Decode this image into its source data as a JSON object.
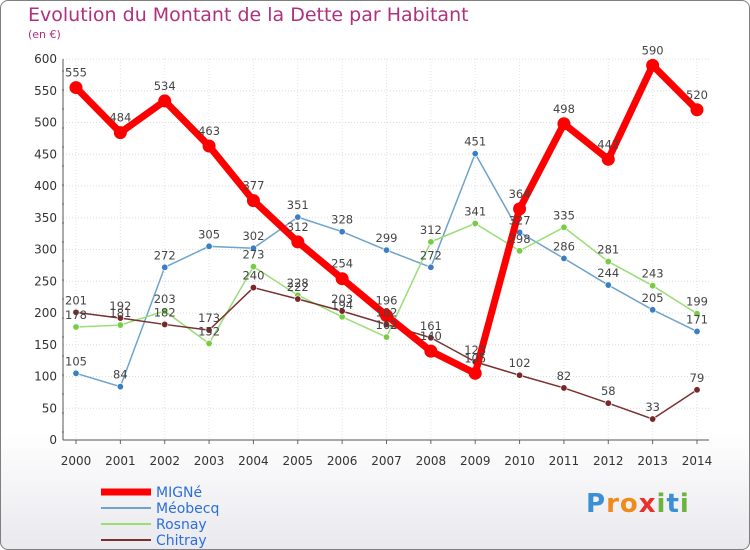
{
  "title": "Evolution du Montant de la Dette par Habitant",
  "subtitle": "(en €)",
  "logo": {
    "text": "Proxiti",
    "letters": [
      {
        "ch": "P",
        "color": "#3a8fd6"
      },
      {
        "ch": "r",
        "color": "#f08a1c"
      },
      {
        "ch": "o",
        "color": "#f08a1c"
      },
      {
        "ch": "x",
        "color": "#e8312f"
      },
      {
        "ch": "i",
        "color": "#6db33f"
      },
      {
        "ch": "t",
        "color": "#3a8fd6"
      },
      {
        "ch": "i",
        "color": "#6db33f"
      }
    ]
  },
  "chart_data": {
    "type": "line",
    "title": "Evolution du Montant de la Dette par Habitant",
    "subtitle": "(en €)",
    "x": [
      "2000",
      "2001",
      "2002",
      "2003",
      "2004",
      "2005",
      "2006",
      "2007",
      "2008",
      "2009",
      "2010",
      "2011",
      "2012",
      "2013",
      "2014"
    ],
    "ylim": [
      0,
      600
    ],
    "yticks": [
      0,
      50,
      100,
      150,
      200,
      250,
      300,
      350,
      400,
      450,
      500,
      550,
      600
    ],
    "grid": true,
    "legend_position": "bottom-left",
    "series": [
      {
        "name": "MIGNé",
        "color": "#ff0000",
        "marker": "#ff0000",
        "width": 7,
        "radius": 6.5,
        "values": [
          555,
          484,
          534,
          463,
          377,
          312,
          254,
          196,
          140,
          105,
          364,
          498,
          442,
          590,
          520
        ],
        "labels": [
          "555",
          "484",
          "534",
          "463",
          "377",
          "312",
          "254",
          "196",
          "140",
          "105",
          "364",
          "498",
          "442",
          "590",
          "520"
        ]
      },
      {
        "name": "Méobecq",
        "color": "#6ea3cc",
        "marker": "#3a7fc1",
        "width": 1.5,
        "radius": 3.2,
        "values": [
          105,
          84,
          272,
          305,
          302,
          351,
          328,
          299,
          272,
          451,
          327,
          286,
          244,
          205,
          171
        ],
        "labels": [
          "105",
          "84",
          "272",
          "305",
          "302",
          "351",
          "328",
          "299",
          "272",
          "451",
          "327",
          "286",
          "244",
          "205",
          "171"
        ]
      },
      {
        "name": "Rosnay",
        "color": "#99dd77",
        "marker": "#77cc44",
        "width": 1.5,
        "radius": 3.2,
        "values": [
          178,
          181,
          203,
          152,
          273,
          228,
          194,
          162,
          312,
          341,
          298,
          335,
          281,
          243,
          199
        ],
        "labels": [
          "178",
          "181",
          "203",
          "152",
          "273",
          "228",
          "194",
          "162",
          "312",
          "341",
          "298",
          "335",
          "281",
          "243",
          "199"
        ]
      },
      {
        "name": "Chitray",
        "color": "#7a3030",
        "marker": "#7a2626",
        "width": 1.5,
        "radius": 3.2,
        "values": [
          201,
          192,
          182,
          173,
          240,
          222,
          203,
          182,
          161,
          123,
          102,
          82,
          58,
          33,
          79
        ],
        "labels": [
          "201",
          "192",
          "182",
          "173",
          "240",
          "222",
          "203",
          "182",
          "161",
          "123",
          "102",
          "82",
          "58",
          "33",
          "79"
        ]
      }
    ]
  }
}
